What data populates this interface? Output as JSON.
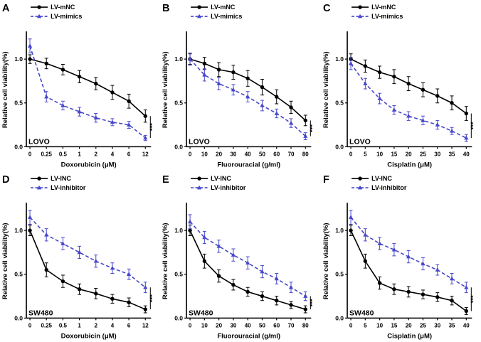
{
  "figure": {
    "background": "#ffffff",
    "accent_black": "#000000",
    "accent_blue": "#4747cb"
  },
  "chart_data": [
    {
      "panel": "A",
      "type": "line",
      "cell_line": "LOVO",
      "xlabel": "Doxorubicin (μM)",
      "ylabel": "Relative cell viability(%)",
      "x_ticklabels": [
        "0",
        "0.25",
        "0.5",
        "1",
        "2",
        "4",
        "6",
        "12"
      ],
      "y_ticks": [
        "0.0",
        "0.5",
        "1.0"
      ],
      "y_tick_values": [
        0,
        0.5,
        1.0
      ],
      "ylim": [
        0,
        1.3
      ],
      "significance": "***",
      "legend_position": "top-left",
      "grid": false,
      "series": [
        {
          "name": "LV-mNC",
          "color": "#000000",
          "dash": "solid",
          "marker": "circle",
          "values": [
            1.0,
            0.95,
            0.88,
            0.8,
            0.72,
            0.62,
            0.52,
            0.35
          ],
          "errors": [
            0.05,
            0.06,
            0.06,
            0.07,
            0.07,
            0.08,
            0.08,
            0.07
          ]
        },
        {
          "name": "LV-mimics",
          "color": "#4747cb",
          "dash": "dashed",
          "marker": "triangle",
          "values": [
            1.15,
            0.57,
            0.47,
            0.4,
            0.33,
            0.28,
            0.25,
            0.1
          ],
          "errors": [
            0.08,
            0.06,
            0.05,
            0.05,
            0.05,
            0.04,
            0.04,
            0.03
          ]
        }
      ]
    },
    {
      "panel": "B",
      "type": "line",
      "cell_line": "LOVO",
      "xlabel": "Fluorouracial (g/ml)",
      "ylabel": "Relative cell viability(%)",
      "x_ticklabels": [
        "0",
        "10",
        "20",
        "30",
        "40",
        "50",
        "60",
        "70",
        "80"
      ],
      "y_ticks": [
        "0.0",
        "0.5",
        "1.0"
      ],
      "y_tick_values": [
        0,
        0.5,
        1.0
      ],
      "ylim": [
        0,
        1.3
      ],
      "significance": "***",
      "legend_position": "top-left",
      "grid": false,
      "series": [
        {
          "name": "LV-mNC",
          "color": "#000000",
          "dash": "solid",
          "marker": "circle",
          "values": [
            1.0,
            0.95,
            0.88,
            0.85,
            0.78,
            0.68,
            0.57,
            0.45,
            0.3
          ],
          "errors": [
            0.06,
            0.07,
            0.08,
            0.08,
            0.09,
            0.09,
            0.08,
            0.07,
            0.06
          ]
        },
        {
          "name": "LV-mimics",
          "color": "#4747cb",
          "dash": "dashed",
          "marker": "triangle",
          "values": [
            1.0,
            0.82,
            0.72,
            0.65,
            0.57,
            0.47,
            0.38,
            0.27,
            0.12
          ],
          "errors": [
            0.07,
            0.07,
            0.07,
            0.06,
            0.06,
            0.06,
            0.05,
            0.05,
            0.04
          ]
        }
      ]
    },
    {
      "panel": "C",
      "type": "line",
      "cell_line": "LOVO",
      "xlabel": "Cisplatin (μM)",
      "ylabel": "Relative cell viability(%)",
      "x_ticklabels": [
        "0",
        "5",
        "10",
        "15",
        "20",
        "25",
        "30",
        "35",
        "40"
      ],
      "y_ticks": [
        "0.0",
        "0.5",
        "1.0"
      ],
      "y_tick_values": [
        0,
        0.5,
        1.0
      ],
      "ylim": [
        0,
        1.3
      ],
      "significance": "***",
      "legend_position": "top-left",
      "grid": false,
      "series": [
        {
          "name": "LV-mNC",
          "color": "#000000",
          "dash": "solid",
          "marker": "circle",
          "values": [
            1.0,
            0.92,
            0.85,
            0.8,
            0.72,
            0.65,
            0.58,
            0.5,
            0.38
          ],
          "errors": [
            0.06,
            0.07,
            0.07,
            0.08,
            0.08,
            0.08,
            0.08,
            0.08,
            0.08
          ]
        },
        {
          "name": "LV-mimics",
          "color": "#4747cb",
          "dash": "dashed",
          "marker": "triangle",
          "values": [
            0.95,
            0.72,
            0.55,
            0.42,
            0.35,
            0.3,
            0.25,
            0.18,
            0.1
          ],
          "errors": [
            0.07,
            0.06,
            0.06,
            0.05,
            0.05,
            0.05,
            0.05,
            0.04,
            0.04
          ]
        }
      ]
    },
    {
      "panel": "D",
      "type": "line",
      "cell_line": "SW480",
      "xlabel": "Doxorubicin (μM)",
      "ylabel": "Relative cell viability(%)",
      "x_ticklabels": [
        "0",
        "0.25",
        "0.5",
        "1",
        "2",
        "4",
        "6",
        "12"
      ],
      "y_ticks": [
        "0.0",
        "0.5",
        "1.0"
      ],
      "y_tick_values": [
        0,
        0.5,
        1.0
      ],
      "ylim": [
        0,
        1.3
      ],
      "significance": "***",
      "legend_position": "top-left",
      "grid": false,
      "series": [
        {
          "name": "LV-INC",
          "color": "#000000",
          "dash": "solid",
          "marker": "circle",
          "values": [
            1.0,
            0.55,
            0.42,
            0.33,
            0.28,
            0.22,
            0.18,
            0.1
          ],
          "errors": [
            0.06,
            0.08,
            0.07,
            0.06,
            0.06,
            0.05,
            0.05,
            0.04
          ]
        },
        {
          "name": "LV-inhibitor",
          "color": "#4747cb",
          "dash": "dashed",
          "marker": "triangle",
          "values": [
            1.15,
            0.95,
            0.85,
            0.75,
            0.65,
            0.57,
            0.5,
            0.35
          ],
          "errors": [
            0.08,
            0.07,
            0.07,
            0.07,
            0.07,
            0.06,
            0.06,
            0.06
          ]
        }
      ]
    },
    {
      "panel": "E",
      "type": "line",
      "cell_line": "SW480",
      "xlabel": "Fluorouracial (g/ml)",
      "ylabel": "Relative cell viability(%)",
      "x_ticklabels": [
        "0",
        "10",
        "20",
        "30",
        "40",
        "50",
        "60",
        "70",
        "80"
      ],
      "y_ticks": [
        "0.0",
        "0.5",
        "1.0"
      ],
      "y_tick_values": [
        0,
        0.5,
        1.0
      ],
      "ylim": [
        0,
        1.3
      ],
      "significance": "***",
      "legend_position": "top-left",
      "grid": false,
      "series": [
        {
          "name": "LV-INC",
          "color": "#000000",
          "dash": "solid",
          "marker": "circle",
          "values": [
            1.0,
            0.65,
            0.48,
            0.38,
            0.3,
            0.25,
            0.2,
            0.15,
            0.1
          ],
          "errors": [
            0.06,
            0.08,
            0.07,
            0.06,
            0.05,
            0.05,
            0.05,
            0.04,
            0.04
          ]
        },
        {
          "name": "LV-inhibitor",
          "color": "#4747cb",
          "dash": "dashed",
          "marker": "triangle",
          "values": [
            1.1,
            0.92,
            0.82,
            0.72,
            0.63,
            0.53,
            0.45,
            0.35,
            0.25
          ],
          "errors": [
            0.08,
            0.07,
            0.07,
            0.07,
            0.07,
            0.07,
            0.06,
            0.06,
            0.05
          ]
        }
      ]
    },
    {
      "panel": "F",
      "type": "line",
      "cell_line": "SW480",
      "xlabel": "Cisplatin (μM)",
      "ylabel": "Relative cell viability(%)",
      "x_ticklabels": [
        "0",
        "5",
        "10",
        "15",
        "20",
        "25",
        "30",
        "35",
        "40"
      ],
      "y_ticks": [
        "0.0",
        "0.5",
        "1.0"
      ],
      "y_tick_values": [
        0,
        0.5,
        1.0
      ],
      "ylim": [
        0,
        1.3
      ],
      "significance": "***",
      "legend_position": "top-left",
      "grid": false,
      "series": [
        {
          "name": "LV-INC",
          "color": "#000000",
          "dash": "solid",
          "marker": "circle",
          "values": [
            1.0,
            0.65,
            0.4,
            0.33,
            0.3,
            0.27,
            0.24,
            0.2,
            0.08
          ],
          "errors": [
            0.06,
            0.08,
            0.07,
            0.06,
            0.06,
            0.05,
            0.05,
            0.05,
            0.04
          ]
        },
        {
          "name": "LV-inhibitor",
          "color": "#4747cb",
          "dash": "dashed",
          "marker": "triangle",
          "values": [
            1.15,
            0.95,
            0.85,
            0.78,
            0.7,
            0.62,
            0.55,
            0.45,
            0.35
          ],
          "errors": [
            0.08,
            0.07,
            0.07,
            0.07,
            0.07,
            0.07,
            0.06,
            0.06,
            0.06
          ]
        }
      ]
    }
  ]
}
